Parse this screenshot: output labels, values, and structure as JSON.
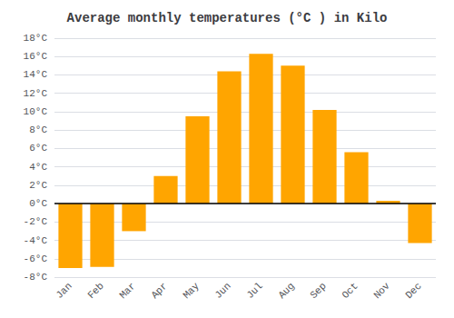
{
  "chart_data": {
    "type": "bar",
    "title": "Average monthly temperatures (°C ) in Kilo",
    "categories": [
      "Jan",
      "Feb",
      "Mar",
      "Apr",
      "May",
      "Jun",
      "Jul",
      "Aug",
      "Sep",
      "Oct",
      "Nov",
      "Dec"
    ],
    "values": [
      -7.0,
      -6.9,
      -3.0,
      3.0,
      9.5,
      14.4,
      16.3,
      15.0,
      10.2,
      5.6,
      0.3,
      -4.3
    ],
    "color": "#FFA500",
    "ylim": [
      -8,
      18
    ],
    "yticks": [
      {
        "value": -8,
        "label": "-8°C"
      },
      {
        "value": -6,
        "label": "-6°C"
      },
      {
        "value": -4,
        "label": "-4°C"
      },
      {
        "value": -2,
        "label": "-2°C"
      },
      {
        "value": 0,
        "label": "0°C"
      },
      {
        "value": 2,
        "label": "2°C"
      },
      {
        "value": 4,
        "label": "4°C"
      },
      {
        "value": 6,
        "label": "6°C"
      },
      {
        "value": 8,
        "label": "8°C"
      },
      {
        "value": 10,
        "label": "10°C"
      },
      {
        "value": 12,
        "label": "12°C"
      },
      {
        "value": 14,
        "label": "14°C"
      },
      {
        "value": 16,
        "label": "16°C"
      },
      {
        "value": 18,
        "label": "18°C"
      }
    ],
    "grid": true
  }
}
